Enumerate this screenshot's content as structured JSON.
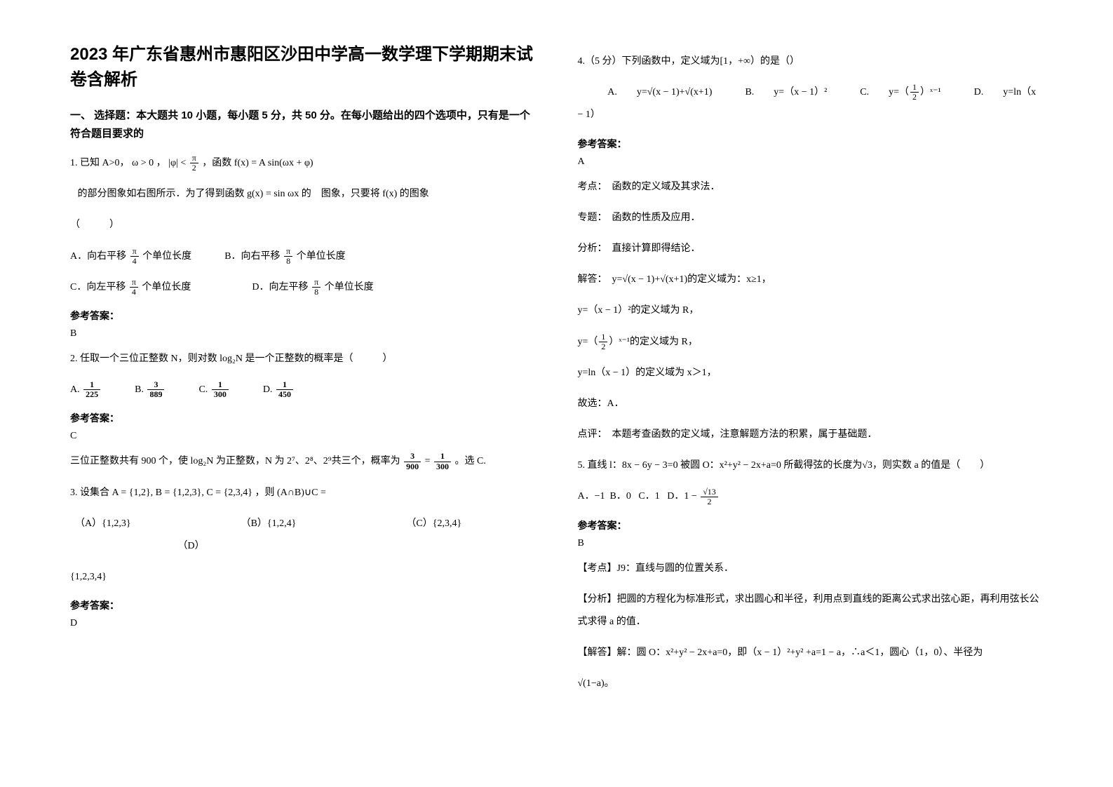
{
  "title": "2023 年广东省惠州市惠阳区沙田中学高一数学理下学期期末试卷含解析",
  "section1_head": "一、 选择题：本大题共 10 小题，每小题 5 分，共 50 分。在每小题给出的四个选项中，只有是一个符合题目要求的",
  "q1_stem1": "1. 已知 A>0，",
  "q1_om": "ω > 0",
  "q1_comma1": "，",
  "q1_phi_abs": "|φ| <",
  "q1_phi_num": "π",
  "q1_phi_den": "2",
  "q1_comma2": "，函数",
  "q1_func": "f(x) = A sin(ωx + φ)",
  "q1_stem2a": "的部分图象如右图所示．为了得到函数",
  "q1_g": "g(x) = sin ωx",
  "q1_stem2b": " 的　图象，只要将",
  "q1_fx": " f(x) ",
  "q1_stem2c": "的图象",
  "q1_paren": "（　　　）",
  "q1_Aa": "A．向右平移 ",
  "q1_A_num": "π",
  "q1_A_den": "4",
  "q1_Ab": " 个单位长度",
  "q1_Ba": "B．向右平移 ",
  "q1_B_num": "π",
  "q1_B_den": "8",
  "q1_Bb": " 个单位长度",
  "q1_Ca": "C．向左平移 ",
  "q1_C_num": "π",
  "q1_C_den": "4",
  "q1_Cb": " 个单位长度",
  "q1_Da": "D．向左平移 ",
  "q1_D_num": "π",
  "q1_D_den": "8",
  "q1_Db": " 个单位长度",
  "ansKey": "参考答案：",
  "q1_ans": "B",
  "q2_stem": "2. 任取一个三位正整数 N，则对数 log₂N 是一个正整数的概率是（　　　）",
  "q2_A": "A. ",
  "q2_A_num": "1",
  "q2_A_den": "225",
  "q2_B": "B. ",
  "q2_B_num": "3",
  "q2_B_den": "889",
  "q2_C": "C. ",
  "q2_C_num": "1",
  "q2_C_den": "300",
  "q2_D": "D. ",
  "q2_D_num": "1",
  "q2_D_den": "450",
  "q2_ans": "C",
  "q2_expl_a": "三位正整数共有 900 个，使 log₂N 为正整数，N 为 2⁷、2⁸、2⁹共三个，概率为",
  "q2_expl_num1": "3",
  "q2_expl_den1": "900",
  "q2_eq": " = ",
  "q2_expl_num2": "1",
  "q2_expl_den2": "300",
  "q2_expl_b": "。选 C.",
  "q3_stem_a": "3. 设集合",
  "q3_sets": " A = {1,2}, B = {1,2,3}, C = {2,3,4}",
  "q3_stem_b": "，则",
  "q3_expr": "(A∩B)∪C = ",
  "q3_A": "（A）",
  "q3_Av": "{1,2,3}",
  "q3_B": "（B）",
  "q3_Bv": "{1,2,4}",
  "q3_C": "（C）",
  "q3_Cv": "{2,3,4}",
  "q3_D": "（D）",
  "q3_Dv": "{1,2,3,4}",
  "q3_ans": "D",
  "q4_stem": "4.（5 分）下列函数中，定义域为[1，+∞）的是（）",
  "q4_A": "A.　　y=",
  "q4_A_rad": "√(x − 1)",
  "q4_A_tail": "+√(x+1)",
  "q4_B": "B.　　y=（x − 1）²",
  "q4_C": "C.　　y=（",
  "q4_C_num": "1",
  "q4_C_den": "2",
  "q4_C_tail": "）ˣ⁻¹",
  "q4_D": "D.　　y=ln（x − 1）",
  "q4_ans": "A",
  "q4_kd": "考点：　函数的定义域及其求法．",
  "q4_zt": "专题：　函数的性质及应用．",
  "q4_fx": "分析：　直接计算即得结论．",
  "q4_jd1a": "解答：　y=",
  "q4_jd1b": "√(x − 1)",
  "q4_jd1c": "+√(x+1)的定义域为：x≥1，",
  "q4_jd2": "y=（x − 1）²的定义域为 R，",
  "q4_jd3a": "y=（",
  "q4_jd3_num": "1",
  "q4_jd3_den": "2",
  "q4_jd3b": "）ˣ⁻¹的定义域为 R，",
  "q4_jd4": "y=ln（x − 1）的定义域为 x＞1，",
  "q4_sel": "故选：A．",
  "q4_dp": "点评：　本题考查函数的定义域，注意解题方法的积累，属于基础题．",
  "q5_stem": "5. 直线 l：8x − 6y − 3=0 被圆 O：x²+y² − 2x+a=0 所截得弦的长度为√3，则实数 a 的值是（　　）",
  "q5_A": "A．−1",
  "q5_B": "B．0",
  "q5_C": "C．1",
  "q5_Da": "D．1 − ",
  "q5_D_num": "√13",
  "q5_D_den": "2",
  "q5_ans": "B",
  "q5_kd": "【考点】J9：直线与圆的位置关系．",
  "q5_fx": "【分析】把圆的方程化为标准形式，求出圆心和半径，利用点到直线的距离公式求出弦心距，再利用弦长公式求得 a 的值．",
  "q5_jd": "【解答】解：圆 O：x²+y² − 2x+a=0，即（x − 1）²+y² +a=1 − a，∴a＜1，圆心（1，0）、半径为",
  "q5_rad": "√(1−a)",
  "q5_period": "。"
}
